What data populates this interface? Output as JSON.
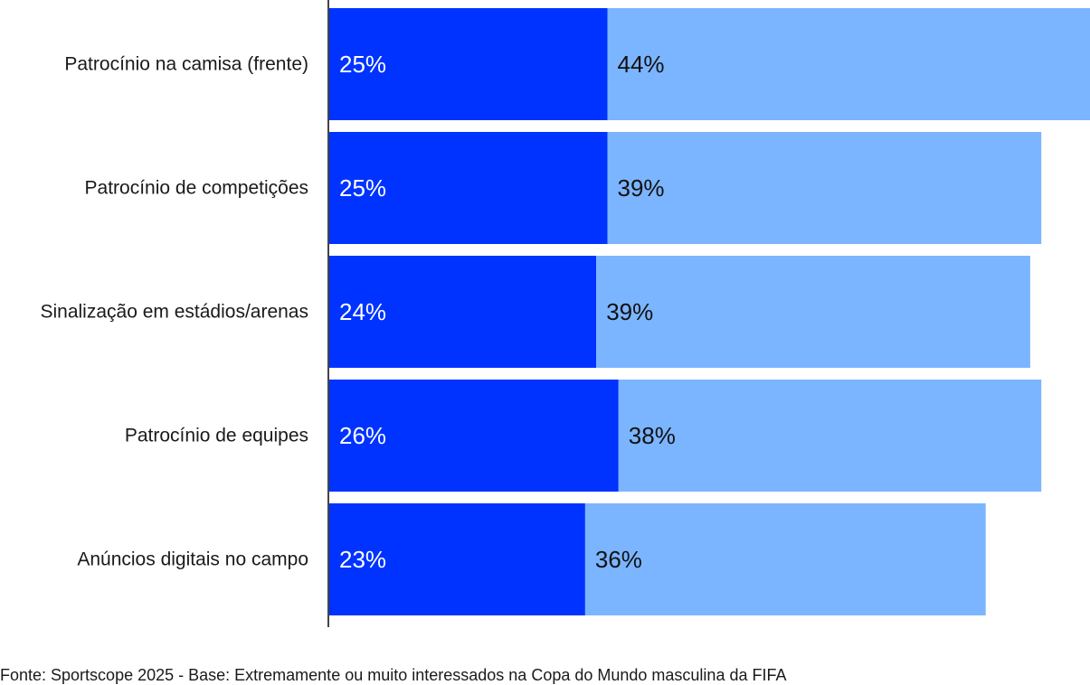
{
  "chart_data": {
    "type": "bar",
    "orientation": "horizontal",
    "stacked": true,
    "categories": [
      "Patrocínio na camisa (frente)",
      "Patrocínio de competições",
      "Sinalização em estádios/arenas",
      "Patrocínio de equipes",
      "Anúncios digitais no campo"
    ],
    "series": [
      {
        "values": [
          25,
          25,
          24,
          26,
          23
        ],
        "labels": [
          "25%",
          "25%",
          "24%",
          "26%",
          "23%"
        ],
        "color": "#0033ff",
        "label_color": "#ffffff"
      },
      {
        "values": [
          44,
          39,
          39,
          38,
          36
        ],
        "labels": [
          "44%",
          "39%",
          "39%",
          "38%",
          "36%"
        ],
        "color": "#7cb5ff",
        "label_color": "#111111"
      }
    ],
    "xlim": [
      0,
      69
    ],
    "grid": false,
    "legend": "none",
    "axis_color": "#444444"
  },
  "footnote": "Fonte: Sportscope 2025 - Base: Extremamente ou muito interessados na Copa do Mundo masculina da FIFA"
}
